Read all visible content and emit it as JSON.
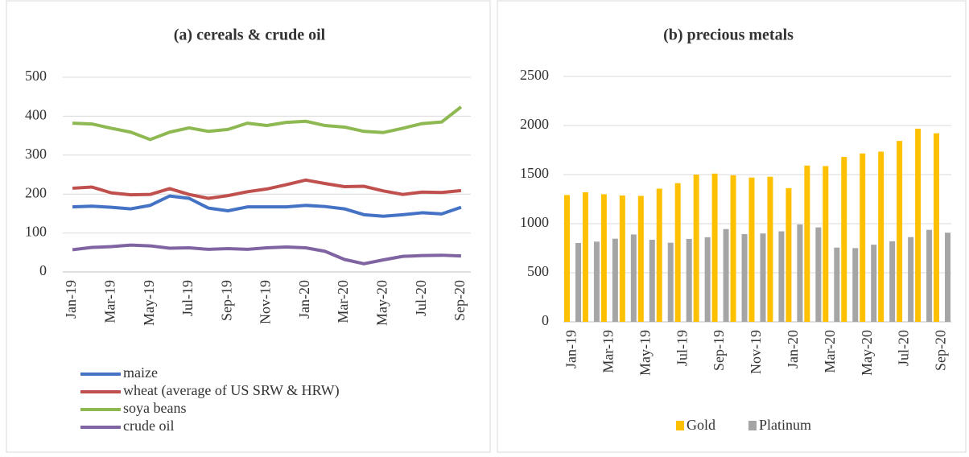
{
  "chart_data": [
    {
      "type": "line",
      "title": "(a) cereals & crude oil",
      "categories": [
        "Jan-19",
        null,
        "Mar-19",
        null,
        "May-19",
        null,
        "Jul-19",
        null,
        "Sep-19",
        null,
        "Nov-19",
        null,
        "Jan-20",
        null,
        "Mar-20",
        null,
        "May-20",
        null,
        "Jul-20",
        null,
        "Sep-20"
      ],
      "series": [
        {
          "name": "maize",
          "color": "#4472c4",
          "values": [
            167,
            169,
            166,
            162,
            171,
            195,
            189,
            164,
            157,
            167,
            167,
            167,
            171,
            168,
            162,
            147,
            143,
            147,
            152,
            149,
            166
          ]
        },
        {
          "name": "wheat (average of US SRW & HRW)",
          "color": "#c0504d",
          "values": [
            215,
            218,
            203,
            198,
            199,
            214,
            199,
            189,
            196,
            206,
            213,
            224,
            236,
            227,
            219,
            220,
            208,
            199,
            205,
            204,
            209
          ]
        },
        {
          "name": "soya beans",
          "color": "#8eb852",
          "values": [
            382,
            380,
            369,
            359,
            340,
            359,
            370,
            361,
            366,
            382,
            376,
            384,
            387,
            376,
            372,
            361,
            358,
            369,
            381,
            385,
            424
          ]
        },
        {
          "name": "crude oil",
          "color": "#8064a2",
          "values": [
            57,
            63,
            65,
            69,
            67,
            61,
            62,
            58,
            60,
            58,
            62,
            64,
            62,
            53,
            32,
            21,
            31,
            40,
            42,
            43,
            41
          ]
        }
      ],
      "ylim": [
        0,
        500
      ],
      "yticks": [
        0,
        100,
        200,
        300,
        400,
        500
      ],
      "grid": true,
      "legend": "bottom"
    },
    {
      "type": "bar",
      "title": "(b) precious metals",
      "categories": [
        "Jan-19",
        null,
        "Mar-19",
        null,
        "May-19",
        null,
        "Jul-19",
        null,
        "Sep-19",
        null,
        "Nov-19",
        null,
        "Jan-20",
        null,
        "Mar-20",
        null,
        "May-20",
        null,
        "Jul-20",
        null,
        "Sep-20"
      ],
      "series": [
        {
          "name": "Gold",
          "color": "#ffc000",
          "values": [
            1292,
            1320,
            1300,
            1287,
            1283,
            1357,
            1413,
            1500,
            1510,
            1493,
            1470,
            1478,
            1362,
            1592,
            1587,
            1680,
            1715,
            1734,
            1843,
            1968,
            1921
          ]
        },
        {
          "name": "Platinum",
          "color": "#a5a5a5",
          "values": [
            803,
            817,
            847,
            890,
            836,
            806,
            845,
            862,
            945,
            894,
            900,
            922,
            992,
            962,
            756,
            751,
            786,
            821,
            863,
            937,
            908
          ]
        }
      ],
      "ylim": [
        0,
        2500
      ],
      "yticks": [
        0,
        500,
        1000,
        1500,
        2000,
        2500
      ],
      "grid": true,
      "legend": "bottom"
    }
  ]
}
